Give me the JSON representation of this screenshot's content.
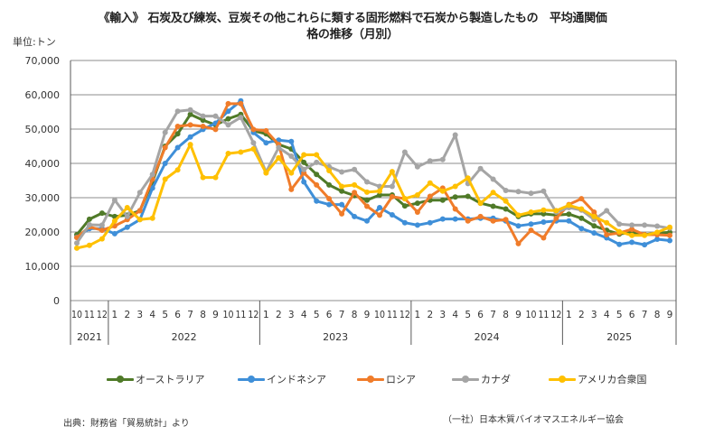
{
  "chart_data": {
    "type": "line",
    "title_line1": "《輸入》 石炭及び練炭、豆炭その他これらに類する固形燃料で石炭から製造したもの　平均通関価",
    "title_line2": "格の推移（月別）",
    "unit_label": "単位:トン",
    "ylabel": "",
    "xlabel": "",
    "ylim": [
      0,
      70000
    ],
    "yticks": [
      0,
      10000,
      20000,
      30000,
      40000,
      50000,
      60000,
      70000
    ],
    "ytick_labels": [
      "0",
      "10,000",
      "20,000",
      "30,000",
      "40,000",
      "50,000",
      "60,000",
      "70,000"
    ],
    "grid": true,
    "month_labels": [
      "10",
      "11",
      "12",
      "1",
      "2",
      "3",
      "4",
      "5",
      "6",
      "7",
      "8",
      "9",
      "10",
      "11",
      "12",
      "1",
      "2",
      "3",
      "4",
      "5",
      "6",
      "7",
      "8",
      "9",
      "10",
      "11",
      "12",
      "1",
      "2",
      "3",
      "4",
      "5",
      "6",
      "7",
      "8",
      "9",
      "10",
      "11",
      "12",
      "1",
      "2",
      "3",
      "4",
      "5",
      "6",
      "7",
      "8",
      "9"
    ],
    "year_groups": [
      {
        "label": "2021",
        "count": 3
      },
      {
        "label": "2022",
        "count": 12
      },
      {
        "label": "2023",
        "count": 12
      },
      {
        "label": "2024",
        "count": 12
      },
      {
        "label": "2025",
        "count": 9
      }
    ],
    "legend_position": "bottom",
    "series": [
      {
        "name": "オーストラリア",
        "color": "#4f7a28",
        "values": [
          19200,
          23700,
          25500,
          24500,
          24900,
          26200,
          34600,
          45000,
          48600,
          54300,
          52600,
          51200,
          53000,
          54300,
          49500,
          48600,
          45500,
          44200,
          40300,
          36800,
          33700,
          31900,
          30600,
          29300,
          30800,
          30800,
          27600,
          28400,
          29300,
          29300,
          30200,
          30400,
          28400,
          27500,
          26700,
          24500,
          25300,
          25300,
          24900,
          25200,
          24000,
          21800,
          20500,
          19400,
          19900,
          19200,
          19700,
          19900
        ]
      },
      {
        "name": "インドネシア",
        "color": "#3f8fd8",
        "values": [
          18500,
          21000,
          21000,
          19500,
          21400,
          23600,
          32800,
          40000,
          44600,
          47700,
          49900,
          51700,
          55200,
          58200,
          49000,
          46000,
          46800,
          46400,
          34600,
          29000,
          28000,
          28000,
          24500,
          23200,
          27100,
          25000,
          22700,
          22000,
          22700,
          23800,
          23800,
          23800,
          24000,
          24000,
          23200,
          21800,
          22300,
          22900,
          23200,
          23200,
          21000,
          19700,
          18300,
          16400,
          17000,
          16300,
          17900,
          17500
        ]
      },
      {
        "name": "ロシア",
        "color": "#f07c2a",
        "values": [
          18400,
          21500,
          20500,
          21800,
          23600,
          26200,
          35400,
          44600,
          50800,
          51200,
          50800,
          49900,
          57400,
          57400,
          49900,
          49500,
          45500,
          32400,
          37200,
          33700,
          29700,
          25300,
          31500,
          27500,
          24900,
          30300,
          29700,
          25800,
          30400,
          32800,
          26700,
          23200,
          24500,
          23200,
          23600,
          16600,
          20500,
          18300,
          24000,
          28000,
          29700,
          25800,
          19200,
          19700,
          20800,
          19200,
          19200,
          19000
        ]
      },
      {
        "name": "カナダ",
        "color": "#a5a5a5",
        "values": [
          16800,
          22100,
          22000,
          29300,
          24500,
          31500,
          36800,
          49000,
          55200,
          55600,
          53800,
          53800,
          51200,
          53400,
          46000,
          37500,
          44600,
          42100,
          38200,
          40300,
          39000,
          37500,
          38200,
          34600,
          33300,
          33300,
          43300,
          39000,
          40700,
          41100,
          48300,
          34100,
          38500,
          35400,
          32100,
          31800,
          31300,
          31900,
          25800,
          27100,
          26400,
          23600,
          26200,
          22300,
          22000,
          22000,
          21700,
          21100
        ]
      },
      {
        "name": "アメリカ合衆国",
        "color": "#ffc000",
        "values": [
          15300,
          16100,
          18000,
          23200,
          27100,
          23600,
          24000,
          35400,
          38100,
          45500,
          35900,
          35900,
          42900,
          43300,
          44200,
          37200,
          41600,
          37200,
          42500,
          42500,
          37900,
          33300,
          33700,
          31600,
          31900,
          37600,
          29700,
          30800,
          34300,
          31900,
          33300,
          35700,
          28400,
          31500,
          29000,
          24900,
          25800,
          26400,
          26200,
          27800,
          26700,
          24500,
          22700,
          20100,
          19000,
          19000,
          19900,
          21400
        ]
      }
    ],
    "source_note": "出典：財務省「貿易統計」より",
    "credit_note": "（一社）日本木質バイオマスエネルギー協会"
  }
}
